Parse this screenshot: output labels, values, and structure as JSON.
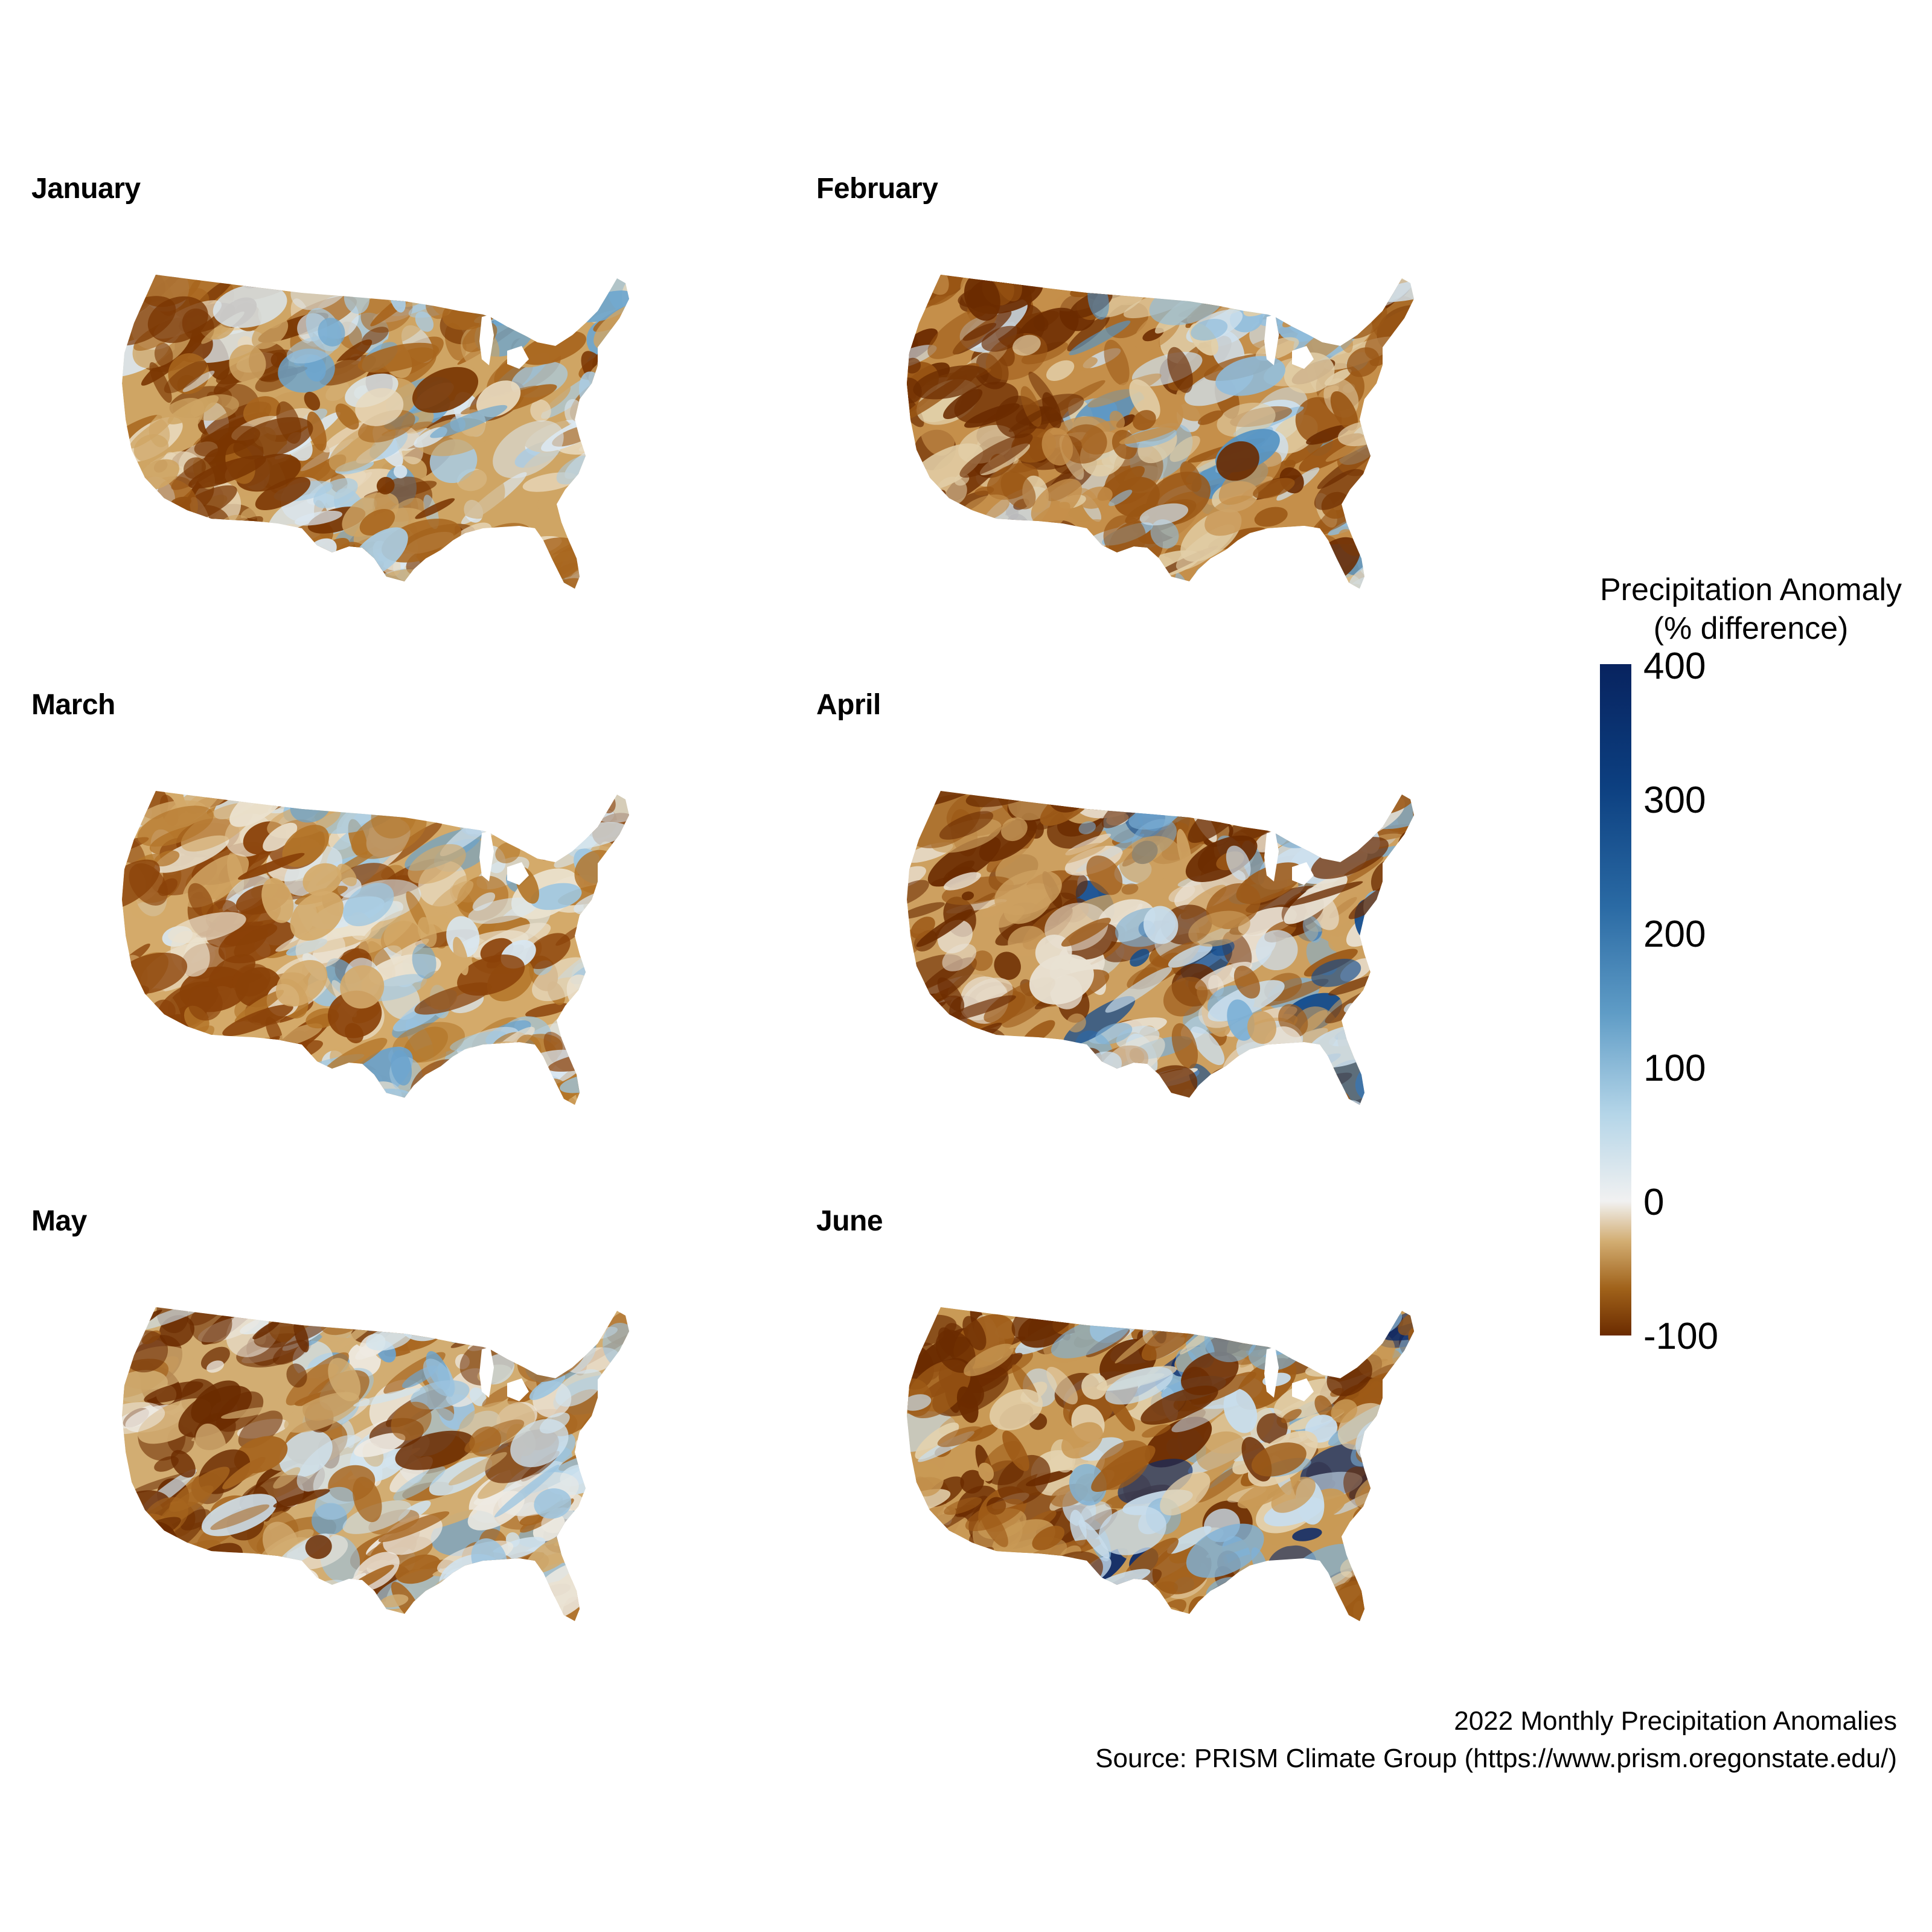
{
  "panels": [
    {
      "title": "January"
    },
    {
      "title": "February"
    },
    {
      "title": "March"
    },
    {
      "title": "April"
    },
    {
      "title": "May"
    },
    {
      "title": "June"
    }
  ],
  "legend": {
    "title_line1": "Precipitation Anomaly",
    "title_line2": "(% difference)",
    "ticks": [
      "400",
      "300",
      "200",
      "100",
      "0",
      "-100"
    ],
    "range": [
      -100,
      400
    ],
    "colors": [
      "#6b2b00",
      "#a0621a",
      "#d2ad72",
      "#f1f1f1",
      "#b4d5e8",
      "#5f9cc6",
      "#2a6aa4",
      "#0c3f80",
      "#08235f"
    ]
  },
  "caption": {
    "line1": "2022 Monthly Precipitation Anomalies",
    "line2": "Source: PRISM Climate Group (https://www.prism.oregonstate.edu/)"
  }
}
